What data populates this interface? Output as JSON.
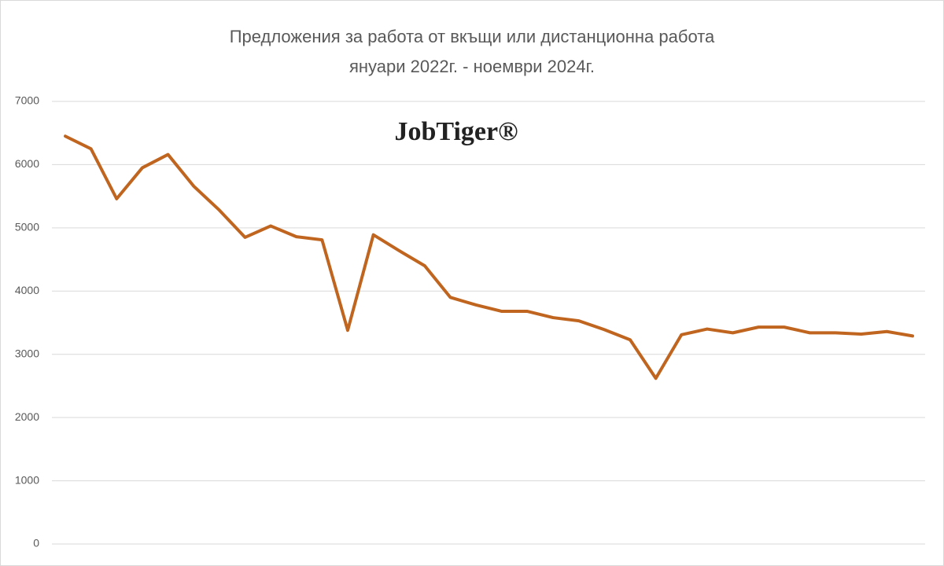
{
  "chart_data": {
    "type": "line",
    "title": [
      "Предложения за работа от вкъщи или дистанционна работа",
      "януари 2022г. - ноември 2024г."
    ],
    "annotation": "JobTiger®",
    "series": [
      {
        "color": "#c0651f",
        "values": [
          6450,
          6250,
          5460,
          5950,
          6160,
          5660,
          5280,
          4850,
          5030,
          4860,
          4810,
          3380,
          4890,
          4640,
          4400,
          3900,
          3780,
          3680,
          3680,
          3580,
          3530,
          3390,
          3230,
          2620,
          3310,
          3400,
          3340,
          3430,
          3430,
          3340,
          3340,
          3320,
          3360,
          3290
        ]
      }
    ],
    "ylim": [
      0,
      7000
    ],
    "yticks": [
      0,
      1000,
      2000,
      3000,
      4000,
      5000,
      6000,
      7000
    ],
    "grid": true
  }
}
